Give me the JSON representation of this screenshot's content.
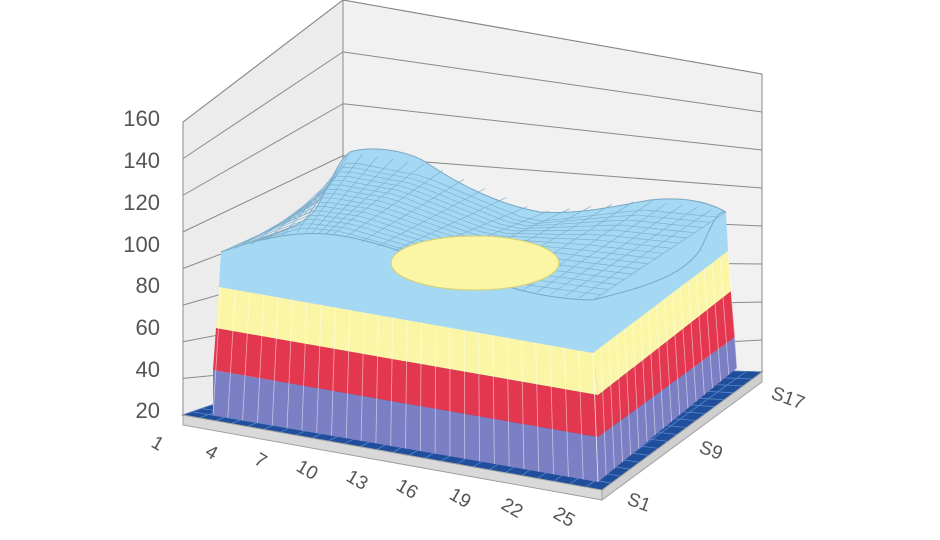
{
  "chart_data": {
    "type": "surface",
    "title": "",
    "z_ticks": [
      "20",
      "40",
      "60",
      "80",
      "100",
      "120",
      "140",
      "160"
    ],
    "zlim": [
      0,
      160
    ],
    "x_ticks": [
      "1",
      "4",
      "7",
      "10",
      "13",
      "16",
      "19",
      "22",
      "25"
    ],
    "series_ticks": [
      "S1",
      "S9",
      "S17"
    ],
    "bands": [
      {
        "range": [
          0,
          40
        ],
        "color": "#7b7fc4"
      },
      {
        "range": [
          40,
          60
        ],
        "color": "#e3364f"
      },
      {
        "range": [
          60,
          80
        ],
        "color": "#fbf6a6"
      },
      {
        "range": [
          80,
          160
        ],
        "color": "#a5d9f3"
      }
    ],
    "floor_color": "#1f4e9c",
    "grid": true,
    "legend": "none"
  }
}
